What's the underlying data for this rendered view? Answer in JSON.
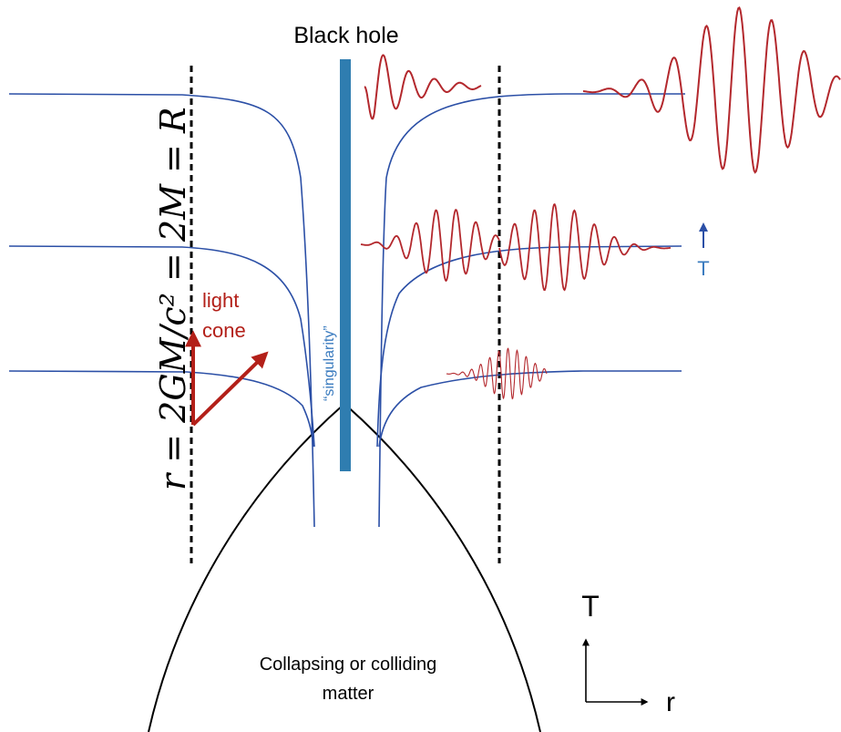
{
  "labels": {
    "black_hole": "Black hole",
    "singularity": "“singularity”",
    "light_cone_line1": "light",
    "light_cone_line2": "cone",
    "horizon_equation": "r = 2GM/c² = 2M = R",
    "time_arrow_label": "T",
    "axis_t_label": "T",
    "axis_r_label": "r",
    "matter_line1": "Collapsing or colliding",
    "matter_line2": "matter"
  },
  "colors": {
    "slice_blue": "#2b4fa6",
    "singularity_bar": "#2f7db0",
    "wave_red": "#b3282d",
    "light_cone_red": "#b32019",
    "black": "#000000",
    "text_blue": "#3a7bbf"
  }
}
